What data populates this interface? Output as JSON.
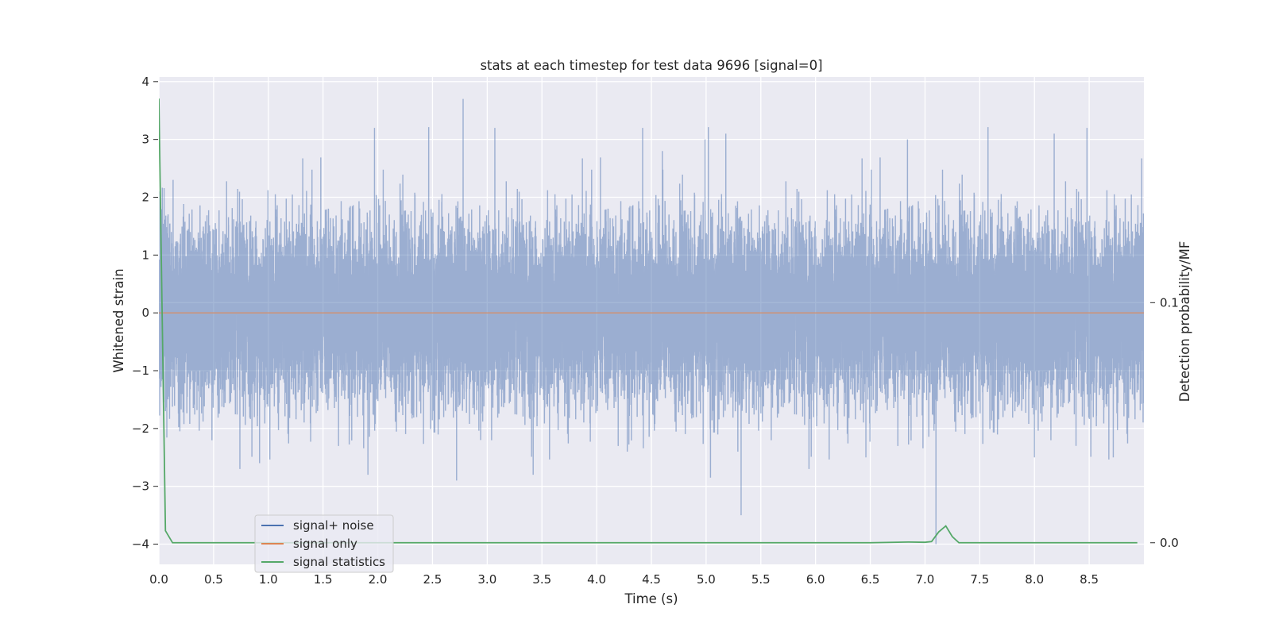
{
  "chart_data": {
    "type": "line",
    "title": "stats at each timestep for test data 9696 [signal=0]",
    "xlabel": "Time (s)",
    "ylabel": "Whitened strain",
    "ylabel_right": "Detection probability/MF",
    "xlim": [
      0.0,
      9.0
    ],
    "ylim": [
      -4.35,
      4.08
    ],
    "ylim_right": [
      -0.009,
      0.194
    ],
    "x_ticks": [
      0.0,
      0.5,
      1.0,
      1.5,
      2.0,
      2.5,
      3.0,
      3.5,
      4.0,
      4.5,
      5.0,
      5.5,
      6.0,
      6.5,
      7.0,
      7.5,
      8.0,
      8.5
    ],
    "x_tick_labels": [
      "0.0",
      "0.5",
      "1.0",
      "1.5",
      "2.0",
      "2.5",
      "3.0",
      "3.5",
      "4.0",
      "4.5",
      "5.0",
      "5.5",
      "6.0",
      "6.5",
      "7.0",
      "7.5",
      "8.0",
      "8.5"
    ],
    "y_ticks": [
      4,
      3,
      2,
      1,
      0,
      -1,
      -2,
      -3,
      -4
    ],
    "y_tick_labels": [
      "4",
      "3",
      "2",
      "1",
      "0",
      "−1",
      "−2",
      "−3",
      "−4"
    ],
    "y_right_ticks": [
      0.1,
      0.0
    ],
    "y_right_tick_labels": [
      "0.1",
      "0.0"
    ],
    "grid": true,
    "legend_position": "lower-left",
    "series": [
      {
        "name": "signal+ noise",
        "axis": "left",
        "color": "#4c72b0",
        "style": "noise",
        "sample_rate_hz": 2048,
        "duration_s": 9.0,
        "std": 0.75,
        "peaks": [
          {
            "x": 0.01,
            "y": 2.1
          },
          {
            "x": 0.06,
            "y": -1.7
          },
          {
            "x": 0.13,
            "y": 2.3
          },
          {
            "x": 0.74,
            "y": -2.7
          },
          {
            "x": 0.92,
            "y": -2.6
          },
          {
            "x": 1.91,
            "y": -2.8
          },
          {
            "x": 1.97,
            "y": 3.2
          },
          {
            "x": 2.72,
            "y": -2.9
          },
          {
            "x": 2.78,
            "y": 3.7
          },
          {
            "x": 2.94,
            "y": -2.2
          },
          {
            "x": 3.07,
            "y": 3.2
          },
          {
            "x": 3.42,
            "y": -2.8
          },
          {
            "x": 4.28,
            "y": -2.4
          },
          {
            "x": 4.42,
            "y": 3.2
          },
          {
            "x": 4.6,
            "y": 2.8
          },
          {
            "x": 4.99,
            "y": 3.0
          },
          {
            "x": 5.04,
            "y": -2.85
          },
          {
            "x": 5.18,
            "y": 3.1
          },
          {
            "x": 5.32,
            "y": -3.5
          },
          {
            "x": 5.29,
            "y": -2.4
          },
          {
            "x": 5.94,
            "y": -2.7
          },
          {
            "x": 6.46,
            "y": -2.5
          },
          {
            "x": 6.84,
            "y": 3.0
          },
          {
            "x": 7.1,
            "y": -4.0
          },
          {
            "x": 8.0,
            "y": -2.5
          },
          {
            "x": 8.18,
            "y": 3.1
          },
          {
            "x": 8.48,
            "y": 3.2
          },
          {
            "x": 8.38,
            "y": -2.3
          },
          {
            "x": 8.72,
            "y": -2.5
          }
        ]
      },
      {
        "name": "signal only",
        "axis": "left",
        "color": "#dd8452",
        "x": [
          0.0,
          9.0
        ],
        "y": [
          0.0,
          0.0
        ]
      },
      {
        "name": "signal statistics",
        "axis": "right",
        "color": "#55a868",
        "x": [
          0.0,
          0.06,
          0.125,
          1.0,
          2.0,
          3.0,
          4.0,
          5.0,
          6.0,
          6.5,
          6.85,
          7.0,
          7.06,
          7.125,
          7.19,
          7.25,
          7.31,
          7.5,
          8.0,
          8.5,
          8.94
        ],
        "y": [
          0.185,
          0.005,
          0.0,
          0.0,
          0.0,
          0.0,
          0.0,
          0.0,
          0.0,
          0.0,
          0.0003,
          0.0002,
          0.0005,
          0.0045,
          0.007,
          0.0025,
          0.0,
          0.0,
          0.0,
          0.0,
          0.0
        ]
      }
    ]
  }
}
